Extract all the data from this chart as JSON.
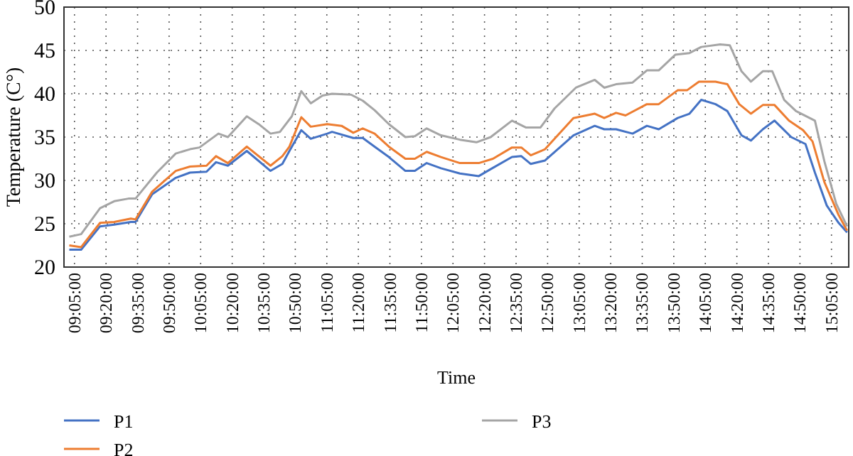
{
  "chart_data": {
    "type": "line",
    "xlabel": "Time",
    "ylabel": "Temperature (C°)",
    "xlim": [
      9,
      15.22
    ],
    "ylim": [
      20,
      50
    ],
    "yticks": [
      20,
      25,
      30,
      35,
      40,
      45,
      50
    ],
    "xticks": [
      {
        "value": 9.0833,
        "label": "09:05:00"
      },
      {
        "value": 9.3333,
        "label": "09:20:00"
      },
      {
        "value": 9.5833,
        "label": "09:35:00"
      },
      {
        "value": 9.8333,
        "label": "09:50:00"
      },
      {
        "value": 10.0833,
        "label": "10:05:00"
      },
      {
        "value": 10.3333,
        "label": "10:20:00"
      },
      {
        "value": 10.5833,
        "label": "10:35:00"
      },
      {
        "value": 10.8333,
        "label": "10:50:00"
      },
      {
        "value": 11.0833,
        "label": "11:05:00"
      },
      {
        "value": 11.3333,
        "label": "11:20:00"
      },
      {
        "value": 11.5833,
        "label": "11:35:00"
      },
      {
        "value": 11.8333,
        "label": "11:50:00"
      },
      {
        "value": 12.0833,
        "label": "12:05:00"
      },
      {
        "value": 12.3333,
        "label": "12:20:00"
      },
      {
        "value": 12.5833,
        "label": "12:35:00"
      },
      {
        "value": 12.8333,
        "label": "12:50:00"
      },
      {
        "value": 13.0833,
        "label": "13:05:00"
      },
      {
        "value": 13.3333,
        "label": "13:20:00"
      },
      {
        "value": 13.5833,
        "label": "13:35:00"
      },
      {
        "value": 13.8333,
        "label": "13:50:00"
      },
      {
        "value": 14.0833,
        "label": "14:05:00"
      },
      {
        "value": 14.3333,
        "label": "14:20:00"
      },
      {
        "value": 14.5833,
        "label": "14:35:00"
      },
      {
        "value": 14.8333,
        "label": "14:50:00"
      },
      {
        "value": 15.0833,
        "label": "15:05:00"
      }
    ],
    "grid": true,
    "legend": "bottom",
    "marker": "none",
    "line_style": "solid",
    "series": [
      {
        "name": "P1",
        "color": "#4472c4",
        "x": [
          9.042,
          9.136,
          9.286,
          9.398,
          9.53,
          9.567,
          9.699,
          9.886,
          9.999,
          10.13,
          10.205,
          10.299,
          10.449,
          10.637,
          10.731,
          10.787,
          10.881,
          10.956,
          11.087,
          11.125,
          11.293,
          11.368,
          11.462,
          11.575,
          11.706,
          11.781,
          11.875,
          11.988,
          12.138,
          12.288,
          12.382,
          12.551,
          12.625,
          12.7,
          12.813,
          13.038,
          13.207,
          13.282,
          13.376,
          13.507,
          13.62,
          13.714,
          13.864,
          13.958,
          14.051,
          14.164,
          14.258,
          14.37,
          14.445,
          14.539,
          14.632,
          14.764,
          14.877,
          14.952,
          15.046,
          15.14,
          15.207
        ],
        "values": [
          22.0,
          22.0,
          24.7,
          24.9,
          25.2,
          25.2,
          28.4,
          30.3,
          30.9,
          31.0,
          32.1,
          31.7,
          33.4,
          31.1,
          31.9,
          33.4,
          35.8,
          34.8,
          35.4,
          35.6,
          34.9,
          34.9,
          33.9,
          32.7,
          31.1,
          31.1,
          32.0,
          31.4,
          30.8,
          30.5,
          31.3,
          32.7,
          32.8,
          31.9,
          32.3,
          35.2,
          36.3,
          35.9,
          35.9,
          35.4,
          36.3,
          35.9,
          37.2,
          37.7,
          39.3,
          38.8,
          38.0,
          35.2,
          34.6,
          35.9,
          36.9,
          35.0,
          34.2,
          30.9,
          27.1,
          25.1,
          24.0
        ]
      },
      {
        "name": "P2",
        "color": "#ed7d31",
        "x": [
          9.042,
          9.136,
          9.286,
          9.398,
          9.53,
          9.567,
          9.699,
          9.886,
          9.999,
          10.13,
          10.205,
          10.299,
          10.449,
          10.637,
          10.731,
          10.787,
          10.881,
          10.956,
          11.087,
          11.2,
          11.293,
          11.368,
          11.462,
          11.575,
          11.706,
          11.781,
          11.875,
          11.988,
          12.138,
          12.288,
          12.4,
          12.551,
          12.625,
          12.7,
          12.813,
          13.038,
          13.207,
          13.282,
          13.376,
          13.451,
          13.62,
          13.714,
          13.864,
          13.938,
          14.033,
          14.164,
          14.258,
          14.352,
          14.445,
          14.539,
          14.632,
          14.746,
          14.858,
          14.933,
          15.027,
          15.14,
          15.207
        ],
        "values": [
          22.5,
          22.3,
          25.1,
          25.2,
          25.6,
          25.5,
          28.7,
          31.1,
          31.6,
          31.7,
          32.8,
          32.0,
          33.9,
          31.7,
          32.8,
          33.9,
          37.3,
          36.2,
          36.5,
          36.3,
          35.5,
          36.0,
          35.4,
          33.9,
          32.5,
          32.5,
          33.3,
          32.7,
          32.0,
          32.0,
          32.5,
          33.8,
          33.8,
          32.9,
          33.6,
          37.2,
          37.7,
          37.2,
          37.8,
          37.5,
          38.8,
          38.8,
          40.4,
          40.4,
          41.4,
          41.4,
          41.1,
          38.8,
          37.7,
          38.7,
          38.7,
          36.9,
          35.8,
          34.5,
          29.8,
          26.0,
          24.2
        ]
      },
      {
        "name": "P3",
        "color": "#a5a5a5",
        "x": [
          9.042,
          9.136,
          9.286,
          9.398,
          9.511,
          9.567,
          9.736,
          9.886,
          9.999,
          10.074,
          10.224,
          10.299,
          10.449,
          10.543,
          10.637,
          10.712,
          10.806,
          10.881,
          10.956,
          11.05,
          11.125,
          11.275,
          11.368,
          11.462,
          11.575,
          11.706,
          11.781,
          11.875,
          11.988,
          12.138,
          12.269,
          12.382,
          12.551,
          12.663,
          12.776,
          12.888,
          13.057,
          13.207,
          13.282,
          13.376,
          13.507,
          13.62,
          13.714,
          13.845,
          13.958,
          14.051,
          14.201,
          14.277,
          14.37,
          14.445,
          14.539,
          14.614,
          14.708,
          14.802,
          14.952,
          15.027,
          15.121,
          15.207
        ],
        "values": [
          23.5,
          23.8,
          26.8,
          27.6,
          27.9,
          27.9,
          30.9,
          33.1,
          33.6,
          33.8,
          35.4,
          35.0,
          37.4,
          36.5,
          35.4,
          35.6,
          37.4,
          40.3,
          38.9,
          39.8,
          40.0,
          39.9,
          39.2,
          38.1,
          36.5,
          35.0,
          35.1,
          36.0,
          35.2,
          34.7,
          34.4,
          35.0,
          36.9,
          36.1,
          36.1,
          38.3,
          40.7,
          41.6,
          40.7,
          41.1,
          41.3,
          42.7,
          42.7,
          44.5,
          44.7,
          45.4,
          45.7,
          45.6,
          42.6,
          41.4,
          42.6,
          42.6,
          39.3,
          38.0,
          36.9,
          32.2,
          27.3,
          24.7
        ]
      }
    ]
  }
}
